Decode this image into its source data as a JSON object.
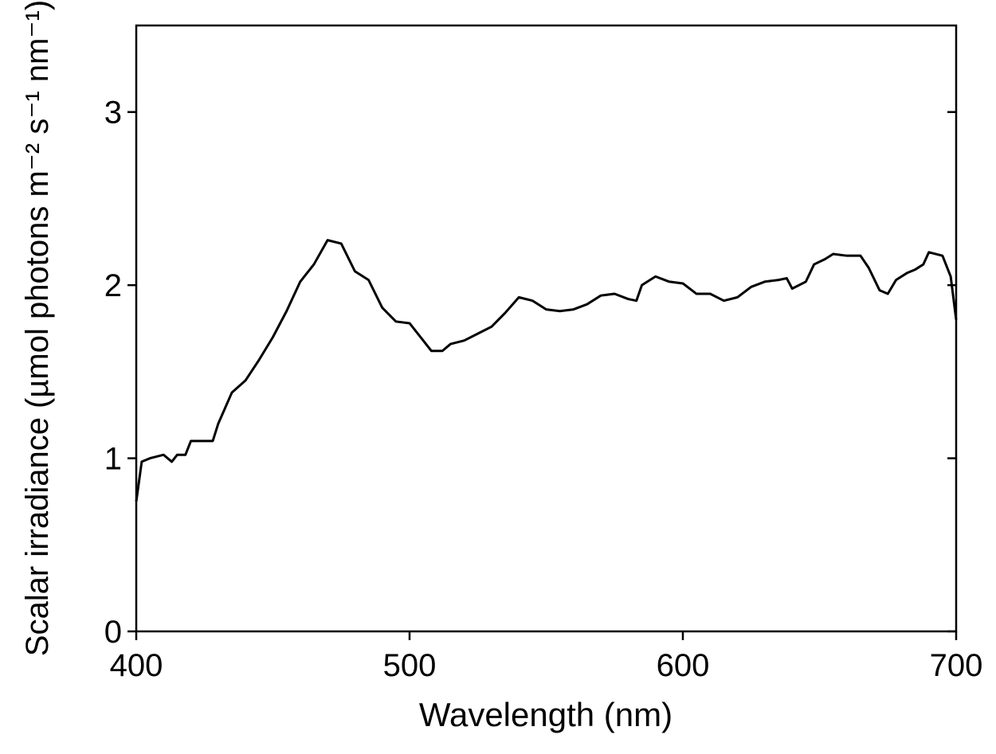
{
  "chart_data": {
    "type": "line",
    "xlabel": "Wavelength (nm)",
    "ylabel": "Scalar irradiance (µmol photons m⁻² s⁻¹ nm⁻¹)",
    "xlim": [
      400,
      700
    ],
    "xticks": [
      400,
      500,
      600,
      700
    ],
    "ylim": [
      0,
      3.5
    ],
    "yticks": [
      0,
      1,
      2,
      3
    ],
    "series": [
      {
        "color": "#000000",
        "x": [
          400,
          402,
          405,
          410,
          413,
          415,
          418,
          420,
          425,
          428,
          430,
          435,
          440,
          445,
          450,
          455,
          460,
          465,
          470,
          475,
          480,
          485,
          490,
          495,
          500,
          505,
          508,
          512,
          515,
          520,
          525,
          530,
          535,
          540,
          545,
          550,
          555,
          560,
          565,
          570,
          575,
          580,
          583,
          585,
          590,
          595,
          600,
          605,
          610,
          615,
          620,
          625,
          630,
          635,
          638,
          640,
          645,
          648,
          652,
          655,
          660,
          665,
          668,
          672,
          675,
          678,
          682,
          685,
          688,
          690,
          695,
          698,
          700
        ],
        "values": [
          0.75,
          0.98,
          1.0,
          1.02,
          0.98,
          1.02,
          1.02,
          1.1,
          1.1,
          1.1,
          1.2,
          1.38,
          1.45,
          1.57,
          1.7,
          1.85,
          2.02,
          2.12,
          2.26,
          2.24,
          2.08,
          2.03,
          1.87,
          1.79,
          1.78,
          1.68,
          1.62,
          1.62,
          1.66,
          1.68,
          1.72,
          1.76,
          1.84,
          1.93,
          1.91,
          1.86,
          1.85,
          1.86,
          1.89,
          1.94,
          1.95,
          1.92,
          1.91,
          2.0,
          2.05,
          2.02,
          2.01,
          1.95,
          1.95,
          1.91,
          1.93,
          1.99,
          2.02,
          2.03,
          2.04,
          1.98,
          2.02,
          2.12,
          2.15,
          2.18,
          2.17,
          2.17,
          2.1,
          1.97,
          1.95,
          2.03,
          2.07,
          2.09,
          2.12,
          2.19,
          2.17,
          2.05,
          1.8
        ]
      }
    ]
  }
}
